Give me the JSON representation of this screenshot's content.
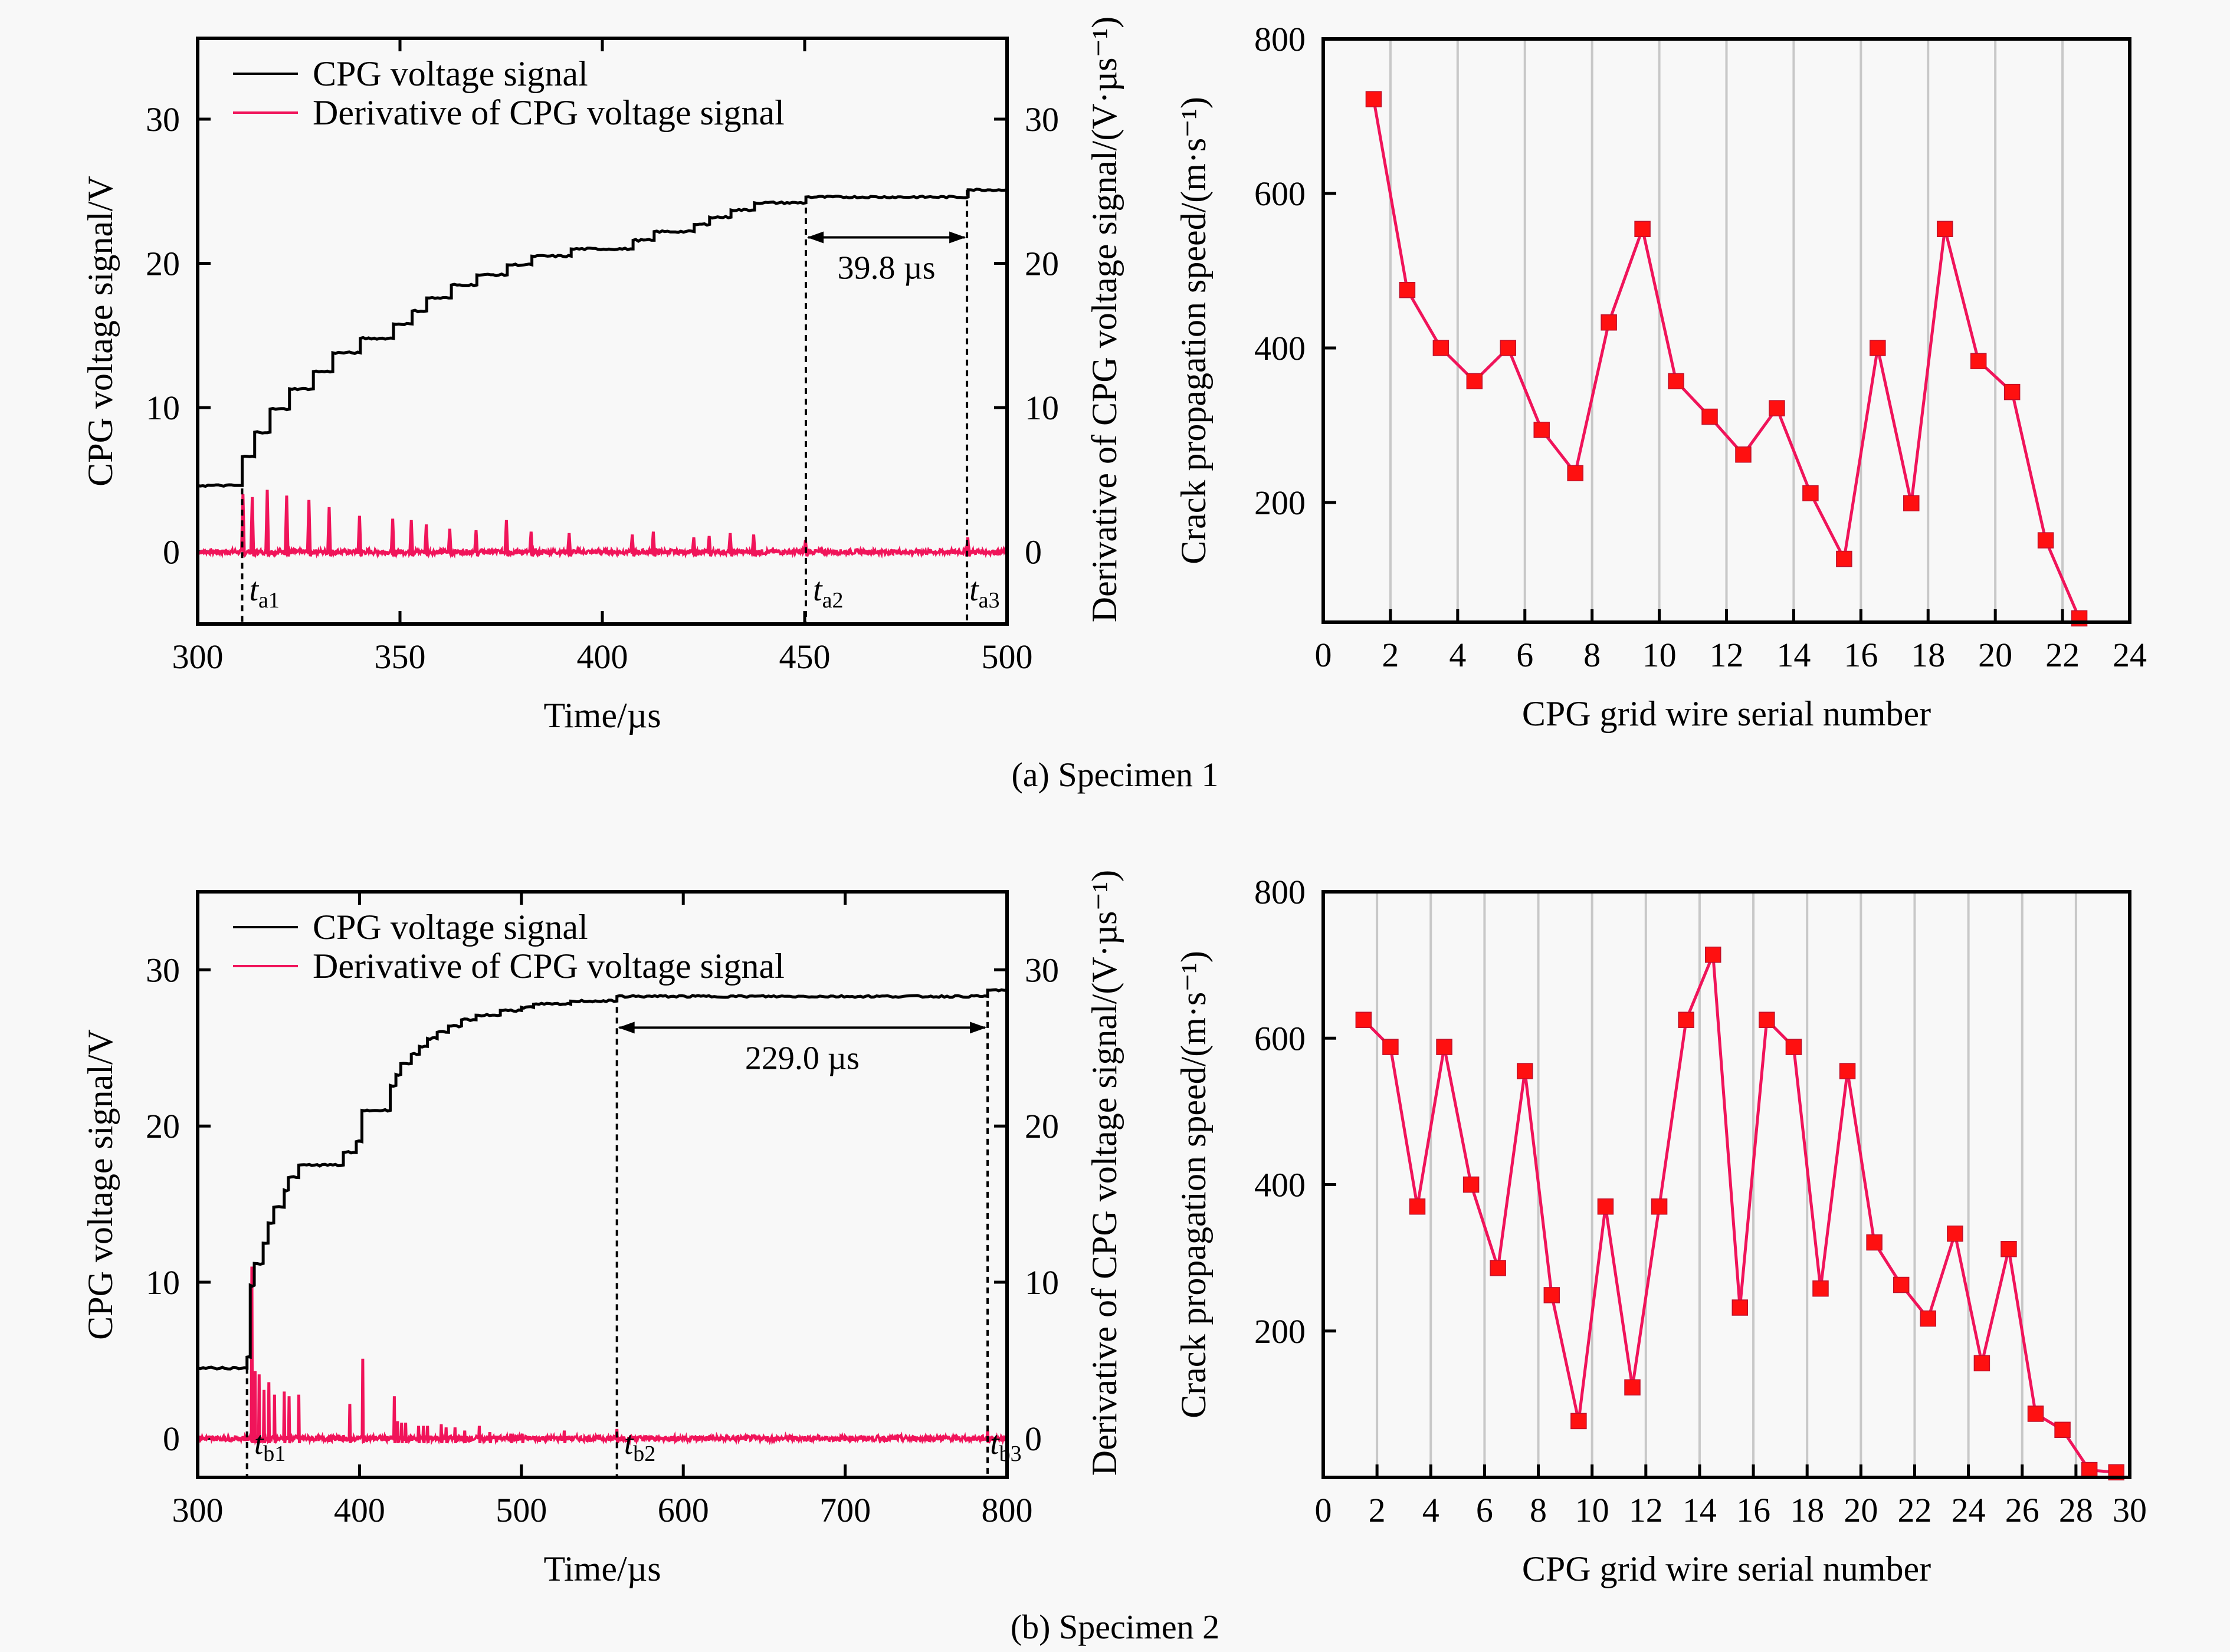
{
  "figure": {
    "captions": [
      "(a) Specimen 1",
      "(b) Specimen 2"
    ]
  },
  "colors": {
    "voltage": "#000000",
    "derivative": "#f0145a",
    "speed_line": "#f0145a",
    "speed_marker": "#ff1010",
    "gridline": "#c8c8c8",
    "background": "#f8f8f8"
  },
  "chart_data": [
    {
      "id": "a-signal",
      "type": "line",
      "panel": "(a) Specimen 1",
      "xlabel": "Time/µs",
      "ylabel": "CPG voltage signal/V",
      "ylabel_right": "Derivative of CPG voltage signal/(V·µs⁻¹)",
      "xlim": [
        300,
        500
      ],
      "ylim": [
        -5,
        35.6
      ],
      "xticks": [
        300,
        350,
        400,
        450,
        500
      ],
      "yticks": [
        0,
        10,
        20,
        30
      ],
      "legend": [
        "CPG voltage signal",
        "Derivative of CPG voltage signal"
      ],
      "legend_position": "top-left",
      "series": [
        {
          "name": "CPG voltage signal",
          "kind": "step",
          "initial": 4.6,
          "steps": [
            [
              311.0,
              6.6
            ],
            [
              314.1,
              8.3
            ],
            [
              317.9,
              9.9
            ],
            [
              322.7,
              11.3
            ],
            [
              328.6,
              12.5
            ],
            [
              333.4,
              13.8
            ],
            [
              340.2,
              14.8
            ],
            [
              348.4,
              15.8
            ],
            [
              353.0,
              16.7
            ],
            [
              356.6,
              17.6
            ],
            [
              362.7,
              18.5
            ],
            [
              369.0,
              19.2
            ],
            [
              376.5,
              19.9
            ],
            [
              382.6,
              20.5
            ],
            [
              392.3,
              21.0
            ],
            [
              407.6,
              21.6
            ],
            [
              412.8,
              22.2
            ],
            [
              422.7,
              22.7
            ],
            [
              426.5,
              23.2
            ],
            [
              431.8,
              23.7
            ],
            [
              437.6,
              24.2
            ],
            [
              450.3,
              24.6
            ],
            [
              490.4,
              25.1
            ]
          ]
        },
        {
          "name": "Derivative of CPG voltage signal",
          "kind": "spikes",
          "baseline": 0,
          "spikes": [
            [
              311.2,
              4.0
            ],
            [
              313.5,
              3.8
            ],
            [
              317.2,
              4.3
            ],
            [
              322.0,
              3.9
            ],
            [
              327.5,
              3.6
            ],
            [
              332.5,
              3.1
            ],
            [
              340.0,
              2.5
            ],
            [
              348.2,
              2.3
            ],
            [
              352.8,
              2.2
            ],
            [
              356.5,
              1.9
            ],
            [
              362.3,
              1.6
            ],
            [
              368.8,
              1.5
            ],
            [
              376.3,
              2.2
            ],
            [
              382.4,
              1.4
            ],
            [
              391.8,
              1.3
            ],
            [
              407.4,
              1.2
            ],
            [
              412.6,
              1.4
            ],
            [
              422.6,
              1.0
            ],
            [
              426.4,
              1.1
            ],
            [
              431.6,
              1.3
            ],
            [
              437.4,
              1.2
            ],
            [
              450.2,
              0.8
            ],
            [
              490.3,
              1.0
            ]
          ]
        }
      ],
      "annotations": [
        {
          "type": "vline",
          "x": 311.0,
          "label": "t",
          "sub": "a1"
        },
        {
          "type": "vline",
          "x": 450.3,
          "label": "t",
          "sub": "a2"
        },
        {
          "type": "vline",
          "x": 490.1,
          "label": "t",
          "sub": "a3"
        },
        {
          "type": "interval",
          "x1": 450.3,
          "x2": 490.1,
          "y": 21.8,
          "text": "39.8 µs"
        }
      ]
    },
    {
      "id": "a-speed",
      "type": "line",
      "panel": "(a) Specimen 1",
      "xlabel": "CPG grid wire serial number",
      "ylabel": "Crack propagation speed/(m·s⁻¹)",
      "xlim": [
        0,
        24
      ],
      "ylim": [
        45,
        800
      ],
      "xticks": [
        0,
        2,
        4,
        6,
        8,
        10,
        12,
        14,
        16,
        18,
        20,
        22,
        24
      ],
      "yticks": [
        200,
        400,
        600,
        800
      ],
      "grid": "vertical",
      "marker": "square",
      "x": [
        1.5,
        2.5,
        3.5,
        4.5,
        5.5,
        6.5,
        7.5,
        8.5,
        9.5,
        10.5,
        11.5,
        12.5,
        13.5,
        14.5,
        15.5,
        16.5,
        17.5,
        18.5,
        19.5,
        20.5,
        21.5,
        22.5
      ],
      "values": [
        722,
        475,
        400,
        357,
        400,
        294,
        238,
        433,
        554,
        357,
        311,
        262,
        322,
        212,
        127,
        400,
        199,
        554,
        383,
        343,
        151,
        50
      ]
    },
    {
      "id": "b-signal",
      "type": "line",
      "panel": "(b) Specimen 2",
      "xlabel": "Time/µs",
      "ylabel": "CPG voltage signal/V",
      "ylabel_right": "Derivative of CPG voltage signal/(V·µs⁻¹)",
      "xlim": [
        300,
        800
      ],
      "ylim": [
        -2.5,
        35
      ],
      "xticks": [
        300,
        400,
        500,
        600,
        700,
        800
      ],
      "yticks": [
        0,
        10,
        20,
        30
      ],
      "legend": [
        "CPG voltage signal",
        "Derivative of CPG voltage signal"
      ],
      "legend_position": "top-left",
      "series": [
        {
          "name": "CPG voltage signal",
          "kind": "step",
          "initial": 4.5,
          "steps": [
            [
              330.5,
              5.2
            ],
            [
              332.5,
              9.8
            ],
            [
              335.0,
              11.2
            ],
            [
              340.5,
              12.5
            ],
            [
              343.5,
              13.8
            ],
            [
              347.0,
              14.8
            ],
            [
              353.5,
              15.9
            ],
            [
              356.0,
              16.7
            ],
            [
              362.5,
              17.5
            ],
            [
              390.0,
              18.3
            ],
            [
              398.0,
              19.0
            ],
            [
              401.5,
              21.0
            ],
            [
              419.0,
              22.6
            ],
            [
              422.5,
              23.3
            ],
            [
              425.5,
              24.0
            ],
            [
              432.0,
              24.6
            ],
            [
              437.0,
              25.1
            ],
            [
              442.0,
              25.6
            ],
            [
              448.0,
              26.0
            ],
            [
              455.0,
              26.4
            ],
            [
              463.0,
              26.8
            ],
            [
              472.0,
              27.1
            ],
            [
              487.0,
              27.4
            ],
            [
              500.0,
              27.6
            ],
            [
              507.5,
              27.8
            ],
            [
              530.5,
              28.0
            ],
            [
              559.0,
              28.3
            ],
            [
              788.0,
              28.7
            ]
          ]
        },
        {
          "name": "Derivative of CPG voltage signal",
          "kind": "spikes",
          "baseline": 0,
          "spikes": [
            [
              333.5,
              11.0
            ],
            [
              335.5,
              4.3
            ],
            [
              338.0,
              4.1
            ],
            [
              341.0,
              3.1
            ],
            [
              344.0,
              3.6
            ],
            [
              347.5,
              2.8
            ],
            [
              353.5,
              3.0
            ],
            [
              356.5,
              2.7
            ],
            [
              362.5,
              2.8
            ],
            [
              394.0,
              2.2
            ],
            [
              402.0,
              5.1
            ],
            [
              421.5,
              2.7
            ],
            [
              423.5,
              1.1
            ],
            [
              426.0,
              1.0
            ],
            [
              428.5,
              1.0
            ],
            [
              436.5,
              0.8
            ],
            [
              439.5,
              0.8
            ],
            [
              442.0,
              0.8
            ],
            [
              450.5,
              0.9
            ],
            [
              453.5,
              0.7
            ],
            [
              459.0,
              0.7
            ],
            [
              465.0,
              0.5
            ],
            [
              474.0,
              0.8
            ],
            [
              480.5,
              0.4
            ],
            [
              493.5,
              0.3
            ],
            [
              500.5,
              0.3
            ],
            [
              526.5,
              0.5
            ],
            [
              559.0,
              0.6
            ],
            [
              788.0,
              0.5
            ]
          ]
        }
      ],
      "annotations": [
        {
          "type": "vline",
          "x": 330.5,
          "label": "t",
          "sub": "b1"
        },
        {
          "type": "vline",
          "x": 559.0,
          "label": "t",
          "sub": "b2"
        },
        {
          "type": "vline",
          "x": 788.0,
          "label": "t",
          "sub": "b3"
        },
        {
          "type": "interval",
          "x1": 559.0,
          "x2": 788.0,
          "y": 26.3,
          "text": "229.0 µs"
        }
      ]
    },
    {
      "id": "b-speed",
      "type": "line",
      "panel": "(b) Specimen 2",
      "xlabel": "CPG grid wire serial number",
      "ylabel": "Crack propagation speed/(m·s⁻¹)",
      "xlim": [
        0,
        30
      ],
      "ylim": [
        0,
        800
      ],
      "xticks": [
        0,
        2,
        4,
        6,
        8,
        10,
        12,
        14,
        16,
        18,
        20,
        22,
        24,
        26,
        28,
        30
      ],
      "yticks": [
        200,
        400,
        600,
        800
      ],
      "grid": "vertical",
      "marker": "square",
      "x": [
        1.5,
        2.5,
        3.5,
        4.5,
        5.5,
        6.5,
        7.5,
        8.5,
        9.5,
        10.5,
        11.5,
        12.5,
        13.5,
        14.5,
        15.5,
        16.5,
        17.5,
        18.5,
        19.5,
        20.5,
        21.5,
        22.5,
        23.5,
        24.5,
        25.5,
        26.5,
        27.5,
        28.5,
        29.5
      ],
      "values": [
        625,
        588,
        370,
        588,
        400,
        286,
        555,
        249,
        77,
        370,
        123,
        370,
        625,
        714,
        232,
        625,
        588,
        258,
        555,
        321,
        263,
        217,
        333,
        156,
        312,
        87,
        65,
        10,
        7
      ]
    }
  ]
}
